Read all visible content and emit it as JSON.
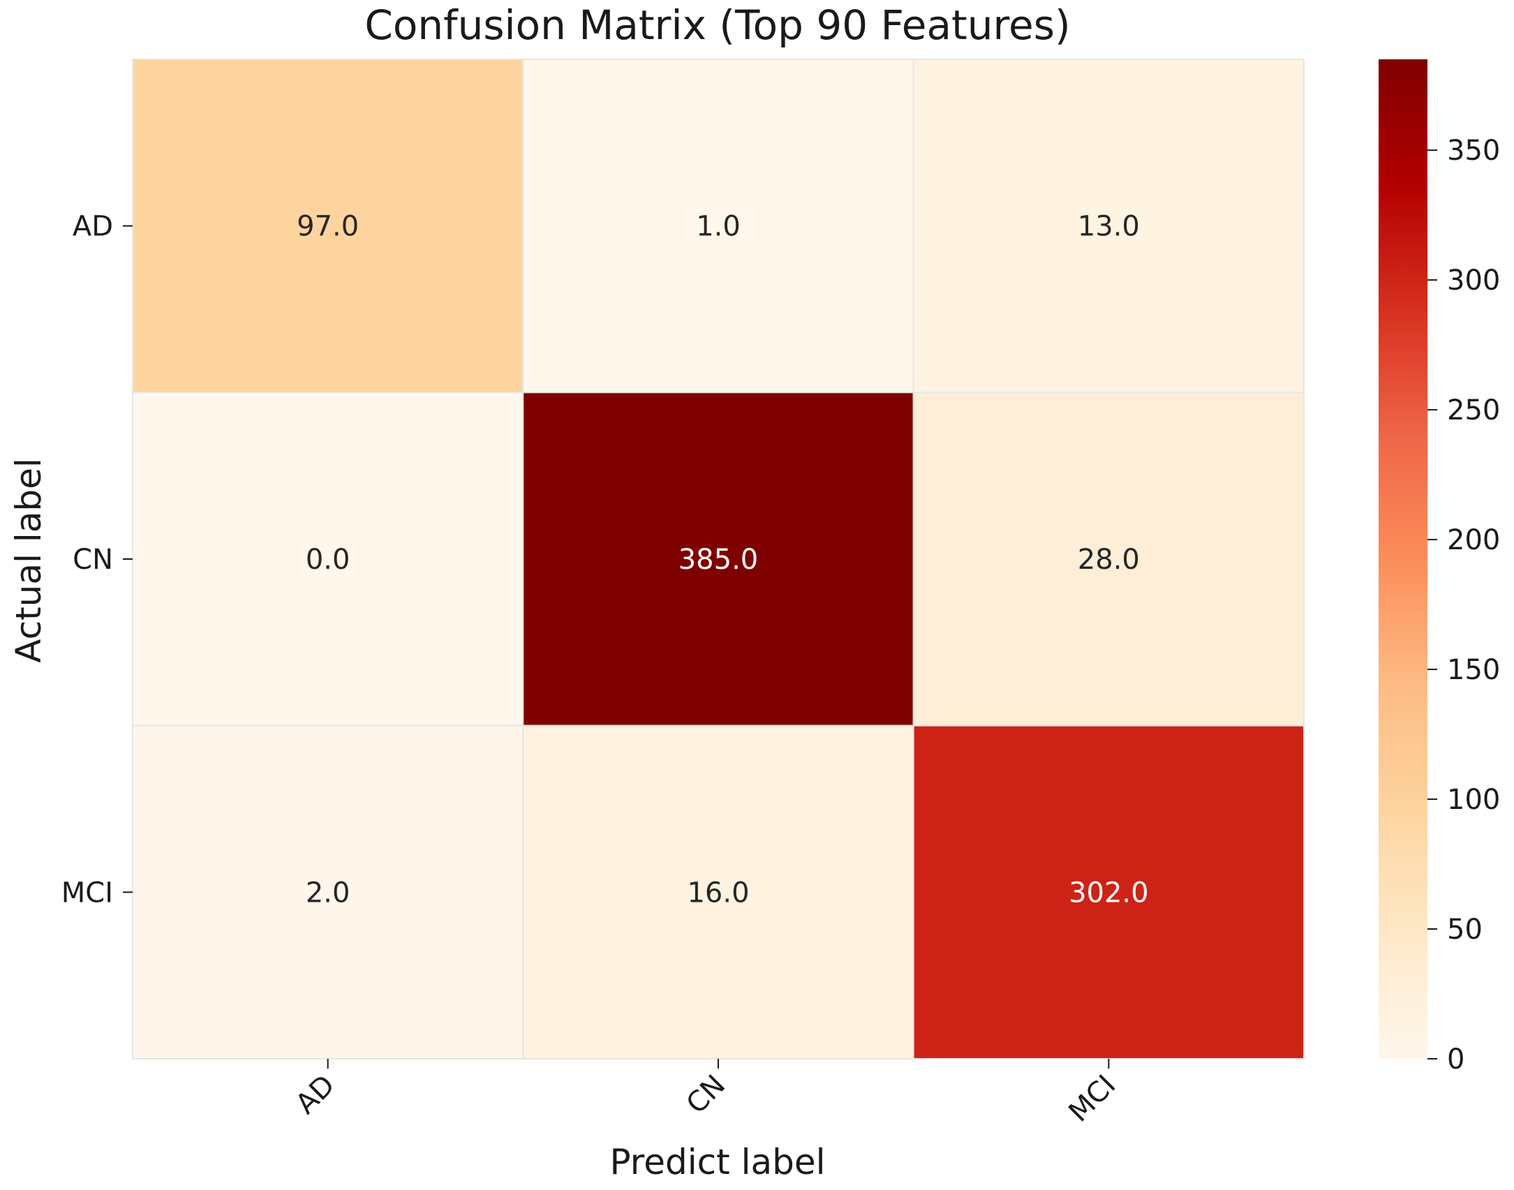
{
  "chart_data": {
    "type": "heatmap",
    "title": "Confusion Matrix (Top 90 Features)",
    "xlabel": "Predict label",
    "ylabel": "Actual label",
    "x_categories": [
      "AD",
      "CN",
      "MCI"
    ],
    "y_categories": [
      "AD",
      "CN",
      "MCI"
    ],
    "matrix": [
      [
        97.0,
        1.0,
        13.0
      ],
      [
        0.0,
        385.0,
        28.0
      ],
      [
        2.0,
        16.0,
        302.0
      ]
    ],
    "cell_labels": [
      [
        "97.0",
        "1.0",
        "13.0"
      ],
      [
        "0.0",
        "385.0",
        "28.0"
      ],
      [
        "2.0",
        "16.0",
        "302.0"
      ]
    ],
    "colormap": "OrRd",
    "colorbar": {
      "range": [
        0,
        385
      ],
      "ticks": [
        0,
        50,
        100,
        150,
        200,
        250,
        300,
        350
      ],
      "tick_labels": [
        "0",
        "50",
        "100",
        "150",
        "200",
        "250",
        "300",
        "350"
      ]
    },
    "colors": {
      "colormap_stops": [
        "#fff7ec",
        "#fee8c8",
        "#fdd49e",
        "#fdbb84",
        "#fc8d59",
        "#ef6548",
        "#d7301f",
        "#b30000",
        "#7f0000"
      ],
      "text_dark": "#262626",
      "text_light": "#ffffff",
      "cell_border": "#e6e6e6"
    }
  }
}
